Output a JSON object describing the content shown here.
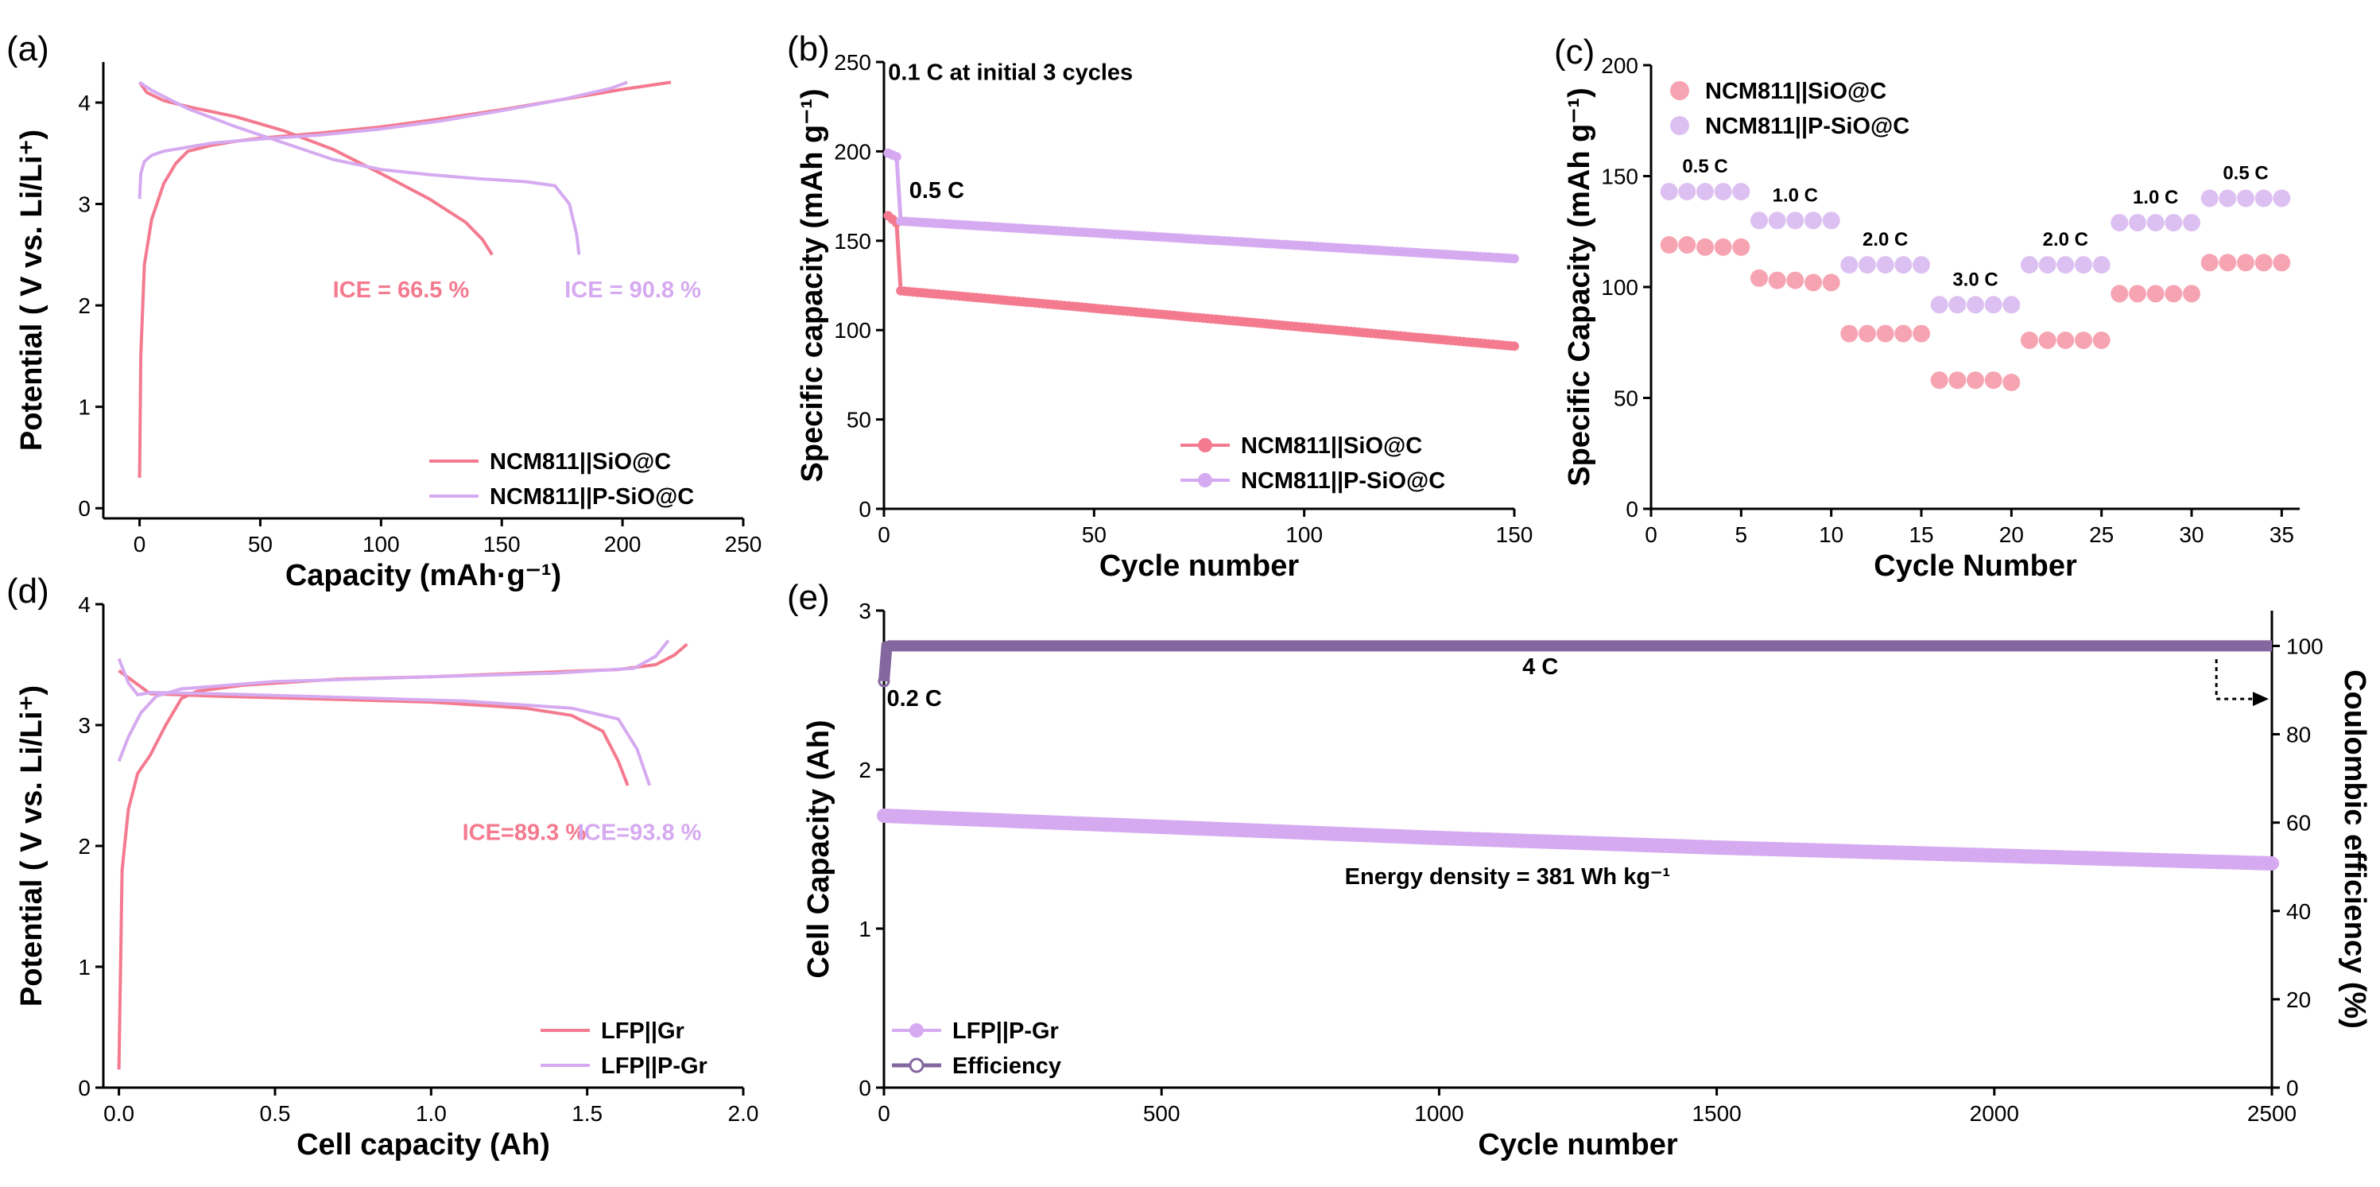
{
  "colors": {
    "pink": "#f47a8f",
    "pinkFill": "#f6a4b2",
    "violet": "#d6aaf0",
    "violetFill": "#dcc0f2",
    "purple": "#84679f",
    "ink": "#000000"
  },
  "chart_data": [
    {
      "id": "a",
      "panel_label": "(a)",
      "type": "line",
      "xlabel": "Capacity (mAh·g⁻¹)",
      "ylabel": "Potential ( V vs. Li/Li⁺)",
      "xlim": [
        -15,
        250
      ],
      "ylim": [
        -0.1,
        4.4
      ],
      "xticks": [
        0,
        50,
        100,
        150,
        200,
        250
      ],
      "xticklabels": [
        "0",
        "50",
        "100",
        "150",
        "200",
        "250"
      ],
      "yticks": [
        0,
        1,
        2,
        3,
        4
      ],
      "yticklabels": [
        "0",
        "1",
        "2",
        "3",
        "4"
      ],
      "legend_position": "bottom-right",
      "series": [
        {
          "name": "NCM811||SiO@C",
          "color": "#f47a8f",
          "charge": {
            "x": [
              0,
              0.5,
              2,
              5,
              10,
              15,
              20,
              30,
              40,
              50,
              75,
              100,
              125,
              150,
              175,
              200,
              220
            ],
            "y": [
              0.3,
              1.5,
              2.4,
              2.85,
              3.2,
              3.4,
              3.52,
              3.58,
              3.62,
              3.65,
              3.7,
              3.76,
              3.84,
              3.93,
              4.03,
              4.13,
              4.2
            ]
          },
          "discharge": {
            "x": [
              0,
              3,
              10,
              20,
              40,
              60,
              80,
              100,
              120,
              135,
              142,
              146
            ],
            "y": [
              4.2,
              4.1,
              4.02,
              3.96,
              3.86,
              3.72,
              3.54,
              3.3,
              3.05,
              2.82,
              2.65,
              2.5
            ]
          }
        },
        {
          "name": "NCM811||P-SiO@C",
          "color": "#d6aaf0",
          "charge": {
            "x": [
              0,
              0.5,
              2,
              5,
              10,
              20,
              30,
              50,
              75,
              100,
              125,
              150,
              175,
              195,
              202
            ],
            "y": [
              3.05,
              3.3,
              3.42,
              3.48,
              3.52,
              3.56,
              3.6,
              3.64,
              3.68,
              3.74,
              3.82,
              3.92,
              4.03,
              4.14,
              4.2
            ]
          },
          "discharge": {
            "x": [
              0,
              5,
              20,
              40,
              60,
              80,
              100,
              120,
              140,
              160,
              172,
              178,
              181,
              182
            ],
            "y": [
              4.2,
              4.12,
              3.94,
              3.76,
              3.6,
              3.44,
              3.34,
              3.29,
              3.25,
              3.22,
              3.18,
              3.0,
              2.7,
              2.5
            ]
          }
        }
      ],
      "annotations": [
        {
          "text": "ICE = 66.5 %",
          "series": "NCM811||SiO@C",
          "at": {
            "x": 80,
            "y": 2.08
          }
        },
        {
          "text": "ICE = 90.8 %",
          "series": "NCM811||P-SiO@C",
          "at": {
            "x": 176,
            "y": 2.08
          }
        }
      ]
    },
    {
      "id": "b",
      "panel_label": "(b)",
      "type": "line",
      "xlabel": "Cycle number",
      "ylabel": "Specific capacity (mAh g⁻¹)",
      "xlim": [
        0,
        150
      ],
      "ylim": [
        0,
        250
      ],
      "xticks": [
        0,
        50,
        100,
        150
      ],
      "xticklabels": [
        "0",
        "50",
        "100",
        "150"
      ],
      "yticks": [
        0,
        50,
        100,
        150,
        200,
        250
      ],
      "yticklabels": [
        "0",
        "50",
        "100",
        "150",
        "200",
        "250"
      ],
      "legend_position": "bottom-right",
      "notes": [
        {
          "text": "0.1 C at initial 3 cycles",
          "at": {
            "x": 1,
            "y": 240
          }
        },
        {
          "text": "0.5 C",
          "at": {
            "x": 6,
            "y": 174
          }
        }
      ],
      "series": [
        {
          "name": "NCM811||SiO@C",
          "color": "#f47a8f",
          "initial": [
            164,
            162,
            160
          ],
          "start": 122,
          "end": 91
        },
        {
          "name": "NCM811||P-SiO@C",
          "color": "#d6aaf0",
          "initial": [
            199,
            198,
            197
          ],
          "start": 161,
          "end": 140
        }
      ]
    },
    {
      "id": "c",
      "panel_label": "(c)",
      "type": "scatter",
      "xlabel": "Cycle Number",
      "ylabel": "Specific Capacity (mAh g⁻¹)",
      "xlim": [
        0,
        36
      ],
      "ylim": [
        0,
        200
      ],
      "xticks": [
        0,
        5,
        10,
        15,
        20,
        25,
        30,
        35
      ],
      "xticklabels": [
        "0",
        "5",
        "10",
        "15",
        "20",
        "25",
        "30",
        "35"
      ],
      "yticks": [
        0,
        50,
        100,
        150,
        200
      ],
      "yticklabels": [
        "0",
        "50",
        "100",
        "150",
        "200"
      ],
      "legend_position": "top-left",
      "rates": [
        "0.5 C",
        "1.0 C",
        "2.0 C",
        "3.0 C",
        "2.0 C",
        "1.0 C",
        "0.5 C"
      ],
      "series": [
        {
          "name": "NCM811||SiO@C",
          "color": "#f6a4b2",
          "x": [
            1,
            2,
            3,
            4,
            5,
            6,
            7,
            8,
            9,
            10,
            11,
            12,
            13,
            14,
            15,
            16,
            17,
            18,
            19,
            20,
            21,
            22,
            23,
            24,
            25,
            26,
            27,
            28,
            29,
            30,
            31,
            32,
            33,
            34,
            35
          ],
          "y": [
            119,
            119,
            118,
            118,
            118,
            104,
            103,
            103,
            102,
            102,
            79,
            79,
            79,
            79,
            79,
            58,
            58,
            58,
            58,
            57,
            76,
            76,
            76,
            76,
            76,
            97,
            97,
            97,
            97,
            97,
            111,
            111,
            111,
            111,
            111
          ]
        },
        {
          "name": "NCM811||P-SiO@C",
          "color": "#dcc0f2",
          "x": [
            1,
            2,
            3,
            4,
            5,
            6,
            7,
            8,
            9,
            10,
            11,
            12,
            13,
            14,
            15,
            16,
            17,
            18,
            19,
            20,
            21,
            22,
            23,
            24,
            25,
            26,
            27,
            28,
            29,
            30,
            31,
            32,
            33,
            34,
            35
          ],
          "y": [
            143,
            143,
            143,
            143,
            143,
            130,
            130,
            130,
            130,
            130,
            110,
            110,
            110,
            110,
            110,
            92,
            92,
            92,
            92,
            92,
            110,
            110,
            110,
            110,
            110,
            129,
            129,
            129,
            129,
            129,
            140,
            140,
            140,
            140,
            140
          ]
        }
      ]
    },
    {
      "id": "d",
      "panel_label": "(d)",
      "type": "line",
      "xlabel": "Cell capacity (Ah)",
      "ylabel": "Potential ( V vs. Li/Li⁺)",
      "xlim": [
        -0.05,
        2.0
      ],
      "ylim": [
        0,
        4
      ],
      "xticks": [
        0,
        0.5,
        1.0,
        1.5,
        2.0
      ],
      "xticklabels": [
        "0.0",
        "0.5",
        "1.0",
        "1.5",
        "2.0"
      ],
      "yticks": [
        0,
        1,
        2,
        3,
        4
      ],
      "yticklabels": [
        "0",
        "1",
        "2",
        "3",
        "4"
      ],
      "legend_position": "bottom-right",
      "series": [
        {
          "name": "LFP||Gr",
          "color": "#f47a8f",
          "charge": {
            "x": [
              0,
              0.01,
              0.03,
              0.06,
              0.1,
              0.15,
              0.2,
              0.25,
              0.4,
              0.7,
              1.0,
              1.3,
              1.6,
              1.72,
              1.78,
              1.82
            ],
            "y": [
              0.15,
              1.8,
              2.3,
              2.6,
              2.75,
              3.0,
              3.22,
              3.28,
              3.33,
              3.38,
              3.4,
              3.43,
              3.46,
              3.5,
              3.58,
              3.67
            ]
          },
          "discharge": {
            "x": [
              0,
              0.1,
              0.3,
              0.6,
              1.0,
              1.3,
              1.45,
              1.55,
              1.6,
              1.63
            ],
            "y": [
              3.45,
              3.26,
              3.24,
              3.22,
              3.19,
              3.14,
              3.08,
              2.95,
              2.7,
              2.5
            ]
          }
        },
        {
          "name": "LFP||P-Gr",
          "color": "#d6aaf0",
          "charge": {
            "x": [
              0,
              0.03,
              0.07,
              0.12,
              0.2,
              0.5,
              1.0,
              1.4,
              1.65,
              1.72,
              1.76
            ],
            "y": [
              2.7,
              2.9,
              3.1,
              3.24,
              3.3,
              3.36,
              3.4,
              3.43,
              3.47,
              3.57,
              3.7
            ]
          },
          "discharge": {
            "x": [
              0,
              0.03,
              0.06,
              0.1,
              0.3,
              0.7,
              1.1,
              1.45,
              1.6,
              1.66,
              1.7
            ],
            "y": [
              3.55,
              3.35,
              3.25,
              3.27,
              3.26,
              3.23,
              3.2,
              3.14,
              3.05,
              2.8,
              2.5
            ]
          }
        }
      ],
      "annotations": [
        {
          "text": "ICE=89.3 %",
          "series": "LFP||Gr",
          "at": {
            "x": 1.1,
            "y": 2.05
          }
        },
        {
          "text": "ICE=93.8 %",
          "series": "LFP||P-Gr",
          "at": {
            "x": 1.47,
            "y": 2.05
          }
        }
      ]
    },
    {
      "id": "e",
      "panel_label": "(e)",
      "type": "line",
      "xlabel": "Cycle number",
      "ylabel": "Cell Capacity (Ah)",
      "y2label": "Coulombic efficiency (%)",
      "xlim": [
        0,
        2500
      ],
      "ylim": [
        0,
        3
      ],
      "y2lim": [
        0,
        108
      ],
      "xticks": [
        0,
        500,
        1000,
        1500,
        2000,
        2500
      ],
      "xticklabels": [
        "0",
        "500",
        "1000",
        "1500",
        "2000",
        "2500"
      ],
      "yticks": [
        0,
        1,
        2,
        3
      ],
      "yticklabels": [
        "0",
        "1",
        "2",
        "3"
      ],
      "y2ticks": [
        0,
        20,
        40,
        60,
        80,
        100
      ],
      "y2ticklabels": [
        "0",
        "20",
        "40",
        "60",
        "80",
        "100"
      ],
      "legend_position": "bottom-left",
      "notes": [
        {
          "text": "0.2 C",
          "at": {
            "x": 5,
            "y": 2.4
          }
        },
        {
          "text": "4 C",
          "at": {
            "x": 1150,
            "y": 2.6
          }
        },
        {
          "text": "Energy density = 381 Wh kg⁻¹",
          "at": {
            "x": 830,
            "y": 1.28
          }
        }
      ],
      "series": [
        {
          "name": "LFP||P-Gr",
          "color": "#d6aaf0",
          "axis": "left",
          "x": [
            0,
            500,
            1000,
            1500,
            2000,
            2500
          ],
          "y": [
            1.71,
            1.64,
            1.57,
            1.51,
            1.46,
            1.41
          ]
        },
        {
          "name": "Efficiency",
          "color": "#84679f",
          "axis": "right",
          "x": [
            0,
            5,
            10,
            2500
          ],
          "y": [
            92,
            99.8,
            100,
            100
          ]
        }
      ]
    }
  ]
}
